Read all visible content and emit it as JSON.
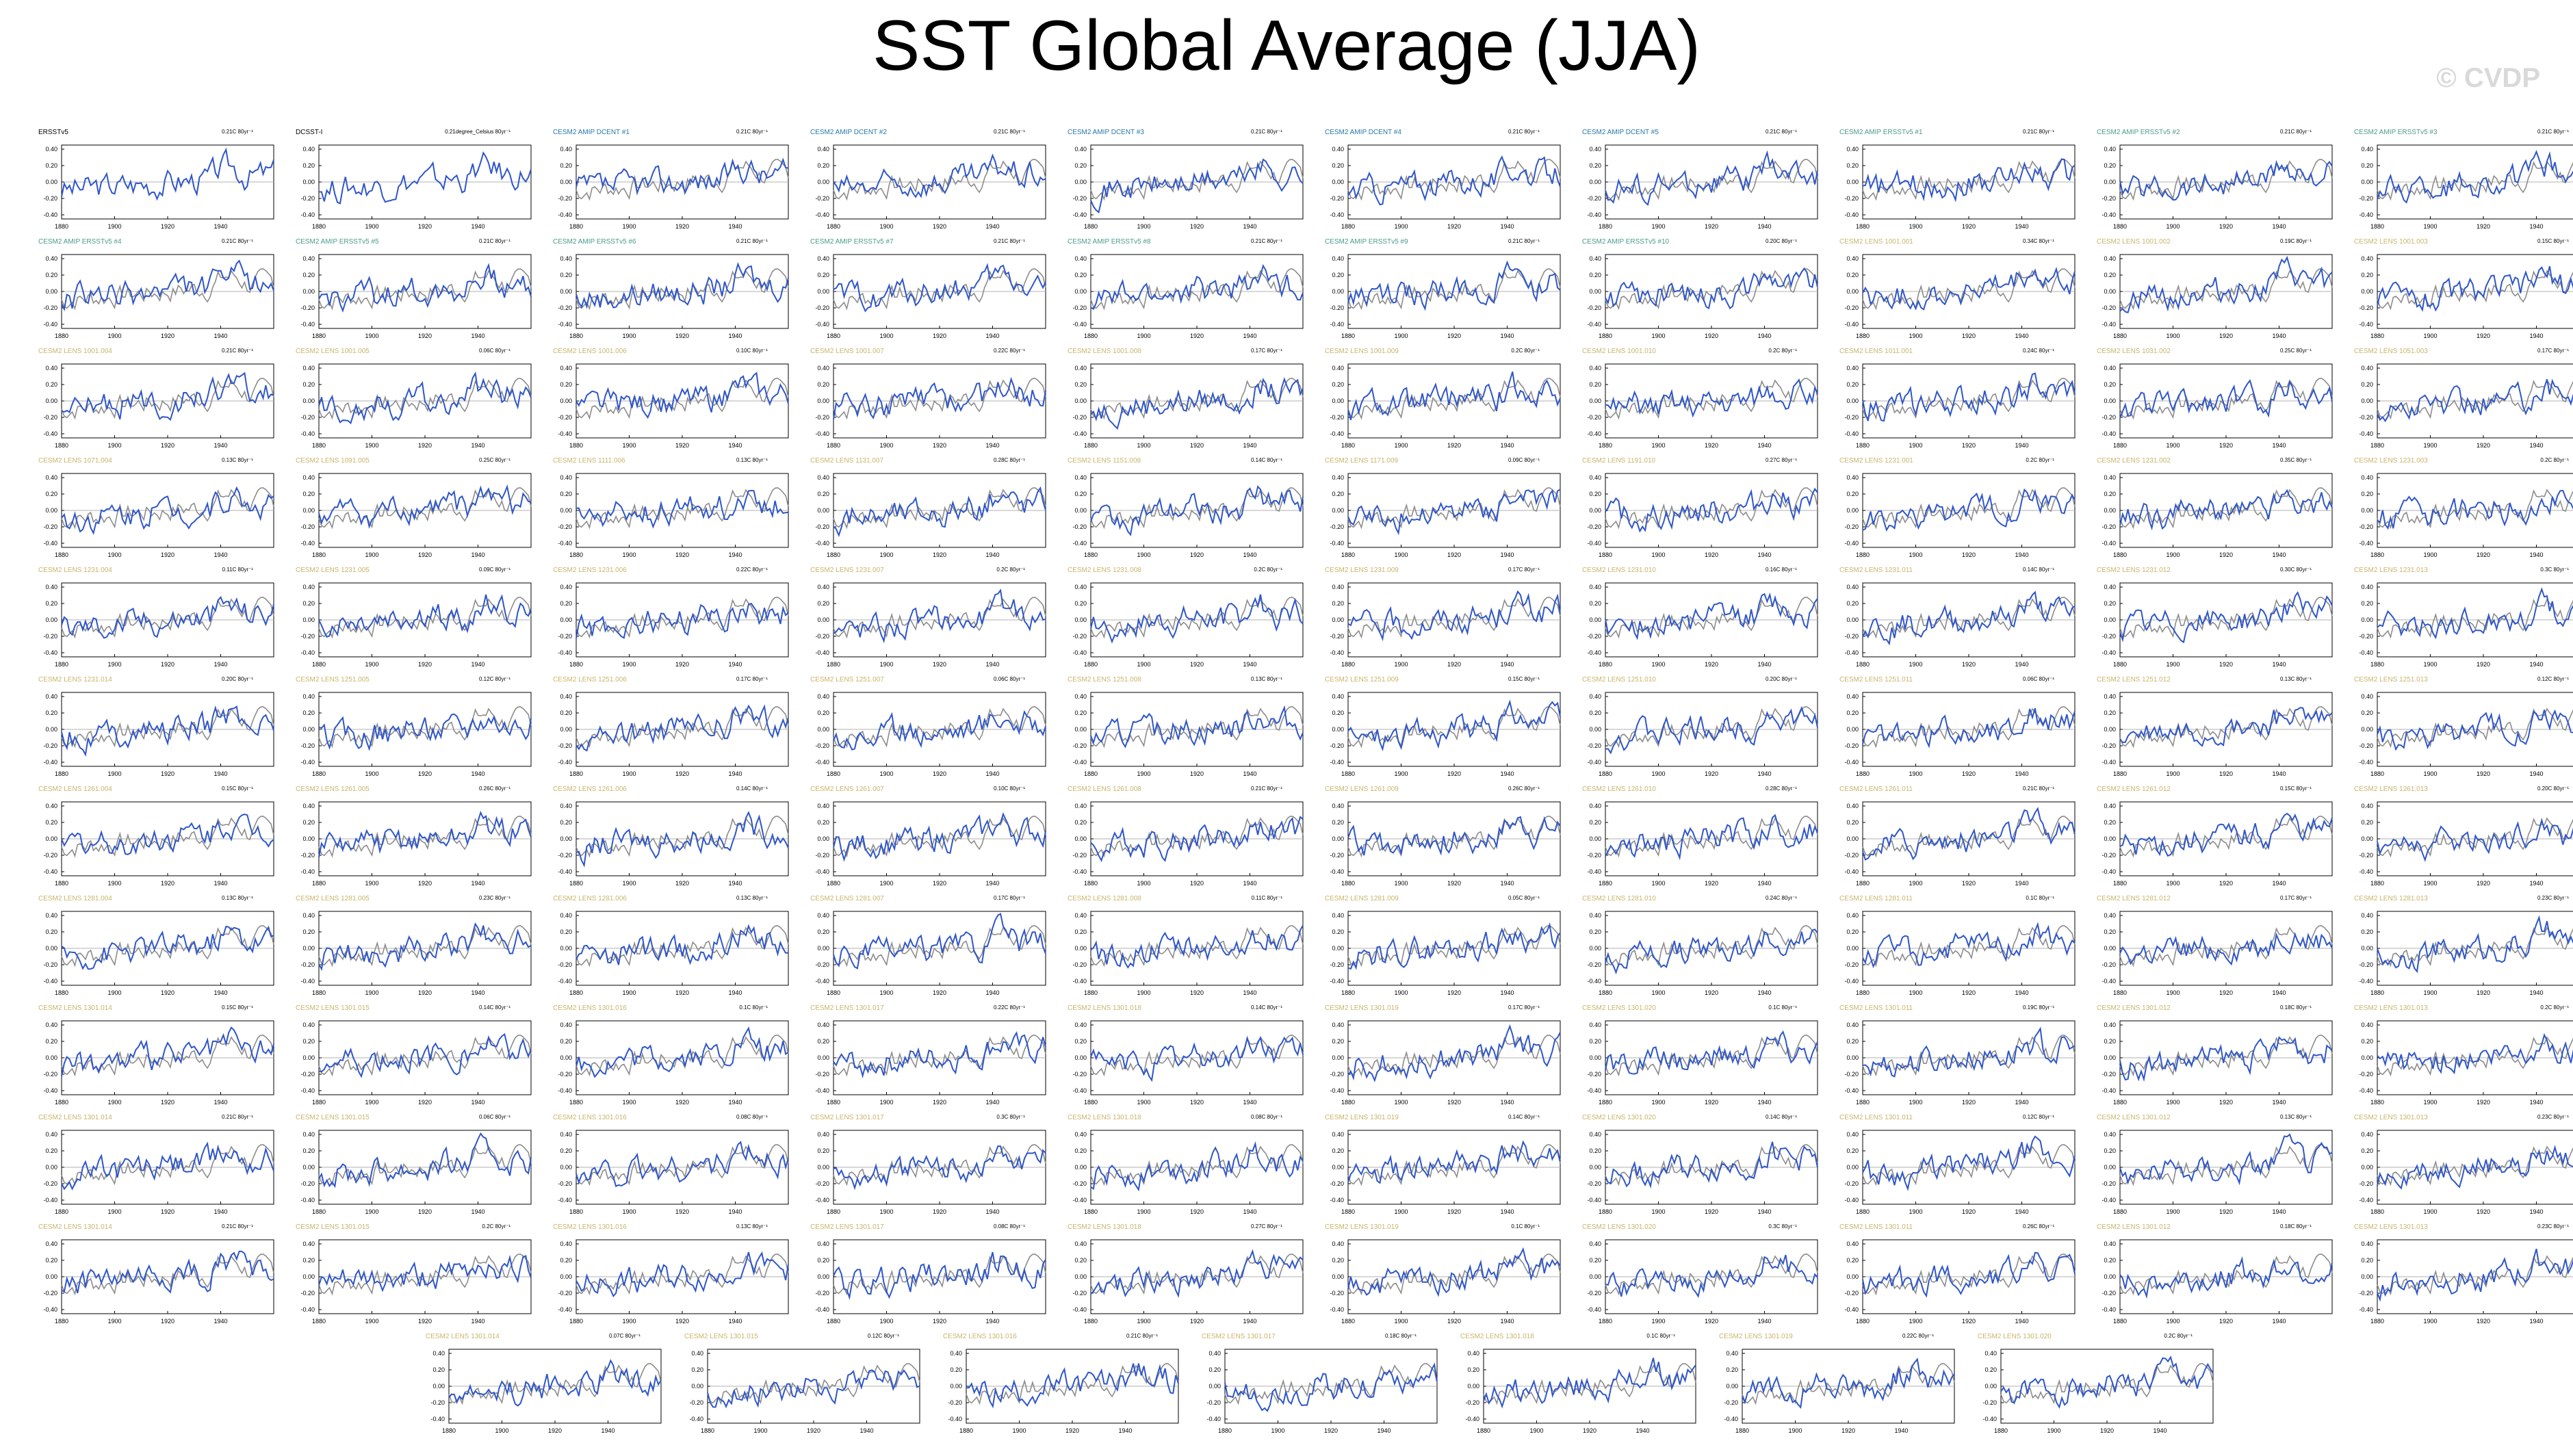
{
  "title": "SST Global Average (JJA)",
  "watermark": "© CVDP",
  "colors": {
    "model": "#2f56c9",
    "obs": "#8c8c8c",
    "zero": "#b0b0b0",
    "t_obs": "#000000",
    "t_dcent": "#2778a8",
    "t_ersst": "#4a9b8a",
    "t_lens": "#c9b46b"
  },
  "chart_data": {
    "type": "line",
    "title": "SST Global Average (JJA)",
    "xlim": [
      1880,
      1960
    ],
    "x_ticks": [
      1880,
      1900,
      1920,
      1940
    ],
    "y_ticks": [
      "0.40",
      "0.20",
      "0.00",
      "-0.20",
      "-0.40"
    ],
    "panels": [
      {
        "name": "ERSSTv5",
        "trend": "0.21C 80yr⁻¹",
        "kind": "obs"
      },
      {
        "name": "DCSST-I",
        "trend": "0.21degree_Celsius 80yr⁻¹",
        "kind": "obs"
      },
      {
        "name": "CESM2 AMIP DCENT #1",
        "trend": "0.21C 80yr⁻¹",
        "kind": "dcent"
      },
      {
        "name": "CESM2 AMIP DCENT #2",
        "trend": "0.21C 80yr⁻¹",
        "kind": "dcent"
      },
      {
        "name": "CESM2 AMIP DCENT #3",
        "trend": "0.21C 80yr⁻¹",
        "kind": "dcent"
      },
      {
        "name": "CESM2 AMIP DCENT #4",
        "trend": "0.21C 80yr⁻¹",
        "kind": "dcent"
      },
      {
        "name": "CESM2 AMIP DCENT #5",
        "trend": "0.21C 80yr⁻¹",
        "kind": "dcent"
      },
      {
        "name": "CESM2 AMIP ERSSTv5 #1",
        "trend": "0.21C 80yr⁻¹",
        "kind": "ersst"
      },
      {
        "name": "CESM2 AMIP ERSSTv5 #2",
        "trend": "0.21C 80yr⁻¹",
        "kind": "ersst"
      },
      {
        "name": "CESM2 AMIP ERSSTv5 #3",
        "trend": "0.21C 80yr⁻¹",
        "kind": "ersst"
      },
      {
        "name": "CESM2 AMIP ERSSTv5 #4",
        "trend": "0.21C 80yr⁻¹",
        "kind": "ersst"
      },
      {
        "name": "CESM2 AMIP ERSSTv5 #5",
        "trend": "0.21C 80yr⁻¹",
        "kind": "ersst"
      },
      {
        "name": "CESM2 AMIP ERSSTv5 #6",
        "trend": "0.21C 80yr⁻¹",
        "kind": "ersst"
      },
      {
        "name": "CESM2 AMIP ERSSTv5 #7",
        "trend": "0.21C 80yr⁻¹",
        "kind": "ersst"
      },
      {
        "name": "CESM2 AMIP ERSSTv5 #8",
        "trend": "0.21C 80yr⁻¹",
        "kind": "ersst"
      },
      {
        "name": "CESM2 AMIP ERSSTv5 #9",
        "trend": "0.21C 80yr⁻¹",
        "kind": "ersst"
      },
      {
        "name": "CESM2 AMIP ERSSTv5 #10",
        "trend": "0.20C 80yr⁻¹",
        "kind": "ersst"
      },
      {
        "name": "CESM2 LENS 1001.001",
        "trend": "0.34C 80yr⁻¹",
        "kind": "lens"
      },
      {
        "name": "CESM2 LENS 1001.002",
        "trend": "0.19C 80yr⁻¹",
        "kind": "lens"
      },
      {
        "name": "CESM2 LENS 1001.003",
        "trend": "0.15C 80yr⁻¹",
        "kind": "lens"
      },
      {
        "name": "CESM2 LENS 1001.004",
        "trend": "0.21C 80yr⁻¹",
        "kind": "lens"
      },
      {
        "name": "CESM2 LENS 1001.005",
        "trend": "0.06C 80yr⁻¹",
        "kind": "lens"
      },
      {
        "name": "CESM2 LENS 1001.006",
        "trend": "0.10C 80yr⁻¹",
        "kind": "lens"
      },
      {
        "name": "CESM2 LENS 1001.007",
        "trend": "0.22C 80yr⁻¹",
        "kind": "lens"
      },
      {
        "name": "CESM2 LENS 1001.008",
        "trend": "0.17C 80yr⁻¹",
        "kind": "lens"
      },
      {
        "name": "CESM2 LENS 1001.009",
        "trend": "0.2C 80yr⁻¹",
        "kind": "lens"
      },
      {
        "name": "CESM2 LENS 1001.010",
        "trend": "0.2C 80yr⁻¹",
        "kind": "lens"
      },
      {
        "name": "CESM2 LENS 1011.001",
        "trend": "0.24C 80yr⁻¹",
        "kind": "lens"
      },
      {
        "name": "CESM2 LENS 1031.002",
        "trend": "0.25C 80yr⁻¹",
        "kind": "lens"
      },
      {
        "name": "CESM2 LENS 1051.003",
        "trend": "0.17C 80yr⁻¹",
        "kind": "lens"
      },
      {
        "name": "CESM2 LENS 1071.004",
        "trend": "0.13C 80yr⁻¹",
        "kind": "lens"
      },
      {
        "name": "CESM2 LENS 1091.005",
        "trend": "0.25C 80yr⁻¹",
        "kind": "lens"
      },
      {
        "name": "CESM2 LENS 1111.006",
        "trend": "0.13C 80yr⁻¹",
        "kind": "lens"
      },
      {
        "name": "CESM2 LENS 1131.007",
        "trend": "0.28C 80yr⁻¹",
        "kind": "lens"
      },
      {
        "name": "CESM2 LENS 1151.008",
        "trend": "0.14C 80yr⁻¹",
        "kind": "lens"
      },
      {
        "name": "CESM2 LENS 1171.009",
        "trend": "0.09C 80yr⁻¹",
        "kind": "lens"
      },
      {
        "name": "CESM2 LENS 1191.010",
        "trend": "0.27C 80yr⁻¹",
        "kind": "lens"
      },
      {
        "name": "CESM2 LENS 1231.001",
        "trend": "0.2C 80yr⁻¹",
        "kind": "lens"
      },
      {
        "name": "CESM2 LENS 1231.002",
        "trend": "0.35C 80yr⁻¹",
        "kind": "lens"
      },
      {
        "name": "CESM2 LENS 1231.003",
        "trend": "0.2C 80yr⁻¹",
        "kind": "lens"
      },
      {
        "name": "CESM2 LENS 1231.004",
        "trend": "0.11C 80yr⁻¹",
        "kind": "lens"
      },
      {
        "name": "CESM2 LENS 1231.005",
        "trend": "0.09C 80yr⁻¹",
        "kind": "lens"
      },
      {
        "name": "CESM2 LENS 1231.006",
        "trend": "0.22C 80yr⁻¹",
        "kind": "lens"
      },
      {
        "name": "CESM2 LENS 1231.007",
        "trend": "0.2C 80yr⁻¹",
        "kind": "lens"
      },
      {
        "name": "CESM2 LENS 1231.008",
        "trend": "0.2C 80yr⁻¹",
        "kind": "lens"
      },
      {
        "name": "CESM2 LENS 1231.009",
        "trend": "0.17C 80yr⁻¹",
        "kind": "lens"
      },
      {
        "name": "CESM2 LENS 1231.010",
        "trend": "0.16C 80yr⁻¹",
        "kind": "lens"
      },
      {
        "name": "CESM2 LENS 1231.011",
        "trend": "0.14C 80yr⁻¹",
        "kind": "lens"
      },
      {
        "name": "CESM2 LENS 1231.012",
        "trend": "0.30C 80yr⁻¹",
        "kind": "lens"
      },
      {
        "name": "CESM2 LENS 1231.013",
        "trend": "0.3C 80yr⁻¹",
        "kind": "lens"
      },
      {
        "name": "CESM2 LENS 1231.014",
        "trend": "0.20C 80yr⁻¹",
        "kind": "lens"
      },
      {
        "name": "CESM2 LENS 1251.005",
        "trend": "0.12C 80yr⁻¹",
        "kind": "lens"
      },
      {
        "name": "CESM2 LENS 1251.006",
        "trend": "0.17C 80yr⁻¹",
        "kind": "lens"
      },
      {
        "name": "CESM2 LENS 1251.007",
        "trend": "0.06C 80yr⁻¹",
        "kind": "lens"
      },
      {
        "name": "CESM2 LENS 1251.008",
        "trend": "0.13C 80yr⁻¹",
        "kind": "lens"
      },
      {
        "name": "CESM2 LENS 1251.009",
        "trend": "0.15C 80yr⁻¹",
        "kind": "lens"
      },
      {
        "name": "CESM2 LENS 1251.010",
        "trend": "0.20C 80yr⁻¹",
        "kind": "lens"
      },
      {
        "name": "CESM2 LENS 1251.011",
        "trend": "0.06C 80yr⁻¹",
        "kind": "lens"
      },
      {
        "name": "CESM2 LENS 1251.012",
        "trend": "0.13C 80yr⁻¹",
        "kind": "lens"
      },
      {
        "name": "CESM2 LENS 1251.013",
        "trend": "0.12C 80yr⁻¹",
        "kind": "lens"
      },
      {
        "name": "CESM2 LENS 1261.004",
        "trend": "0.15C 80yr⁻¹",
        "kind": "lens"
      },
      {
        "name": "CESM2 LENS 1261.005",
        "trend": "0.26C 80yr⁻¹",
        "kind": "lens"
      },
      {
        "name": "CESM2 LENS 1261.006",
        "trend": "0.14C 80yr⁻¹",
        "kind": "lens"
      },
      {
        "name": "CESM2 LENS 1261.007",
        "trend": "0.10C 80yr⁻¹",
        "kind": "lens"
      },
      {
        "name": "CESM2 LENS 1261.008",
        "trend": "0.21C 80yr⁻¹",
        "kind": "lens"
      },
      {
        "name": "CESM2 LENS 1261.009",
        "trend": "0.26C 80yr⁻¹",
        "kind": "lens"
      },
      {
        "name": "CESM2 LENS 1261.010",
        "trend": "0.28C 80yr⁻¹",
        "kind": "lens"
      },
      {
        "name": "CESM2 LENS 1261.011",
        "trend": "0.21C 80yr⁻¹",
        "kind": "lens"
      },
      {
        "name": "CESM2 LENS 1261.012",
        "trend": "0.15C 80yr⁻¹",
        "kind": "lens"
      },
      {
        "name": "CESM2 LENS 1261.013",
        "trend": "0.20C 80yr⁻¹",
        "kind": "lens"
      },
      {
        "name": "CESM2 LENS 1281.004",
        "trend": "0.13C 80yr⁻¹",
        "kind": "lens"
      },
      {
        "name": "CESM2 LENS 1281.005",
        "trend": "0.23C 80yr⁻¹",
        "kind": "lens"
      },
      {
        "name": "CESM2 LENS 1281.006",
        "trend": "0.13C 80yr⁻¹",
        "kind": "lens"
      },
      {
        "name": "CESM2 LENS 1281.007",
        "trend": "0.17C 80yr⁻¹",
        "kind": "lens"
      },
      {
        "name": "CESM2 LENS 1281.008",
        "trend": "0.11C 80yr⁻¹",
        "kind": "lens"
      },
      {
        "name": "CESM2 LENS 1281.009",
        "trend": "0.05C 80yr⁻¹",
        "kind": "lens"
      },
      {
        "name": "CESM2 LENS 1281.010",
        "trend": "0.24C 80yr⁻¹",
        "kind": "lens"
      },
      {
        "name": "CESM2 LENS 1281.011",
        "trend": "0.1C 80yr⁻¹",
        "kind": "lens"
      },
      {
        "name": "CESM2 LENS 1281.012",
        "trend": "0.17C 80yr⁻¹",
        "kind": "lens"
      },
      {
        "name": "CESM2 LENS 1281.013",
        "trend": "0.23C 80yr⁻¹",
        "kind": "lens"
      },
      {
        "name": "CESM2 LENS 1301.014",
        "trend": "0.15C 80yr⁻¹",
        "kind": "lens"
      },
      {
        "name": "CESM2 LENS 1301.015",
        "trend": "0.14C 80yr⁻¹",
        "kind": "lens"
      },
      {
        "name": "CESM2 LENS 1301.016",
        "trend": "0.1C 80yr⁻¹",
        "kind": "lens"
      },
      {
        "name": "CESM2 LENS 1301.017",
        "trend": "0.22C 80yr⁻¹",
        "kind": "lens"
      },
      {
        "name": "CESM2 LENS 1301.018",
        "trend": "0.14C 80yr⁻¹",
        "kind": "lens"
      },
      {
        "name": "CESM2 LENS 1301.019",
        "trend": "0.17C 80yr⁻¹",
        "kind": "lens"
      },
      {
        "name": "CESM2 LENS 1301.020",
        "trend": "0.1C 80yr⁻¹",
        "kind": "lens"
      },
      {
        "name": "CESM2 LENS 1301.011",
        "trend": "0.19C 80yr⁻¹",
        "kind": "lens"
      },
      {
        "name": "CESM2 LENS 1301.012",
        "trend": "0.18C 80yr⁻¹",
        "kind": "lens"
      },
      {
        "name": "CESM2 LENS 1301.013",
        "trend": "0.2C 80yr⁻¹",
        "kind": "lens"
      },
      {
        "name": "CESM2 LENS 1301.014",
        "trend": "0.21C 80yr⁻¹",
        "kind": "lens"
      },
      {
        "name": "CESM2 LENS 1301.015",
        "trend": "0.06C 80yr⁻¹",
        "kind": "lens"
      },
      {
        "name": "CESM2 LENS 1301.016",
        "trend": "0.08C 80yr⁻¹",
        "kind": "lens"
      },
      {
        "name": "CESM2 LENS 1301.017",
        "trend": "0.3C 80yr⁻¹",
        "kind": "lens"
      },
      {
        "name": "CESM2 LENS 1301.018",
        "trend": "0.08C 80yr⁻¹",
        "kind": "lens"
      },
      {
        "name": "CESM2 LENS 1301.019",
        "trend": "0.14C 80yr⁻¹",
        "kind": "lens"
      },
      {
        "name": "CESM2 LENS 1301.020",
        "trend": "0.14C 80yr⁻¹",
        "kind": "lens"
      },
      {
        "name": "CESM2 LENS 1301.011",
        "trend": "0.12C 80yr⁻¹",
        "kind": "lens"
      },
      {
        "name": "CESM2 LENS 1301.012",
        "trend": "0.13C 80yr⁻¹",
        "kind": "lens"
      },
      {
        "name": "CESM2 LENS 1301.013",
        "trend": "0.23C 80yr⁻¹",
        "kind": "lens"
      },
      {
        "name": "CESM2 LENS 1301.014",
        "trend": "0.21C 80yr⁻¹",
        "kind": "lens"
      },
      {
        "name": "CESM2 LENS 1301.015",
        "trend": "0.2C 80yr⁻¹",
        "kind": "lens"
      },
      {
        "name": "CESM2 LENS 1301.016",
        "trend": "0.13C 80yr⁻¹",
        "kind": "lens"
      },
      {
        "name": "CESM2 LENS 1301.017",
        "trend": "0.08C 80yr⁻¹",
        "kind": "lens"
      },
      {
        "name": "CESM2 LENS 1301.018",
        "trend": "0.27C 80yr⁻¹",
        "kind": "lens"
      },
      {
        "name": "CESM2 LENS 1301.019",
        "trend": "0.1C 80yr⁻¹",
        "kind": "lens"
      },
      {
        "name": "CESM2 LENS 1301.020",
        "trend": "0.3C 80yr⁻¹",
        "kind": "lens"
      },
      {
        "name": "CESM2 LENS 1301.011",
        "trend": "0.26C 80yr⁻¹",
        "kind": "lens"
      },
      {
        "name": "CESM2 LENS 1301.012",
        "trend": "0.18C 80yr⁻¹",
        "kind": "lens"
      },
      {
        "name": "CESM2 LENS 1301.013",
        "trend": "0.23C 80yr⁻¹",
        "kind": "lens"
      },
      {
        "name": "CESM2 LENS 1301.014",
        "trend": "0.07C 80yr⁻¹",
        "kind": "lens"
      },
      {
        "name": "CESM2 LENS 1301.015",
        "trend": "0.12C 80yr⁻¹",
        "kind": "lens"
      },
      {
        "name": "CESM2 LENS 1301.016",
        "trend": "0.21C 80yr⁻¹",
        "kind": "lens"
      },
      {
        "name": "CESM2 LENS 1301.017",
        "trend": "0.18C 80yr⁻¹",
        "kind": "lens"
      },
      {
        "name": "CESM2 LENS 1301.018",
        "trend": "0.1C 80yr⁻¹",
        "kind": "lens"
      },
      {
        "name": "CESM2 LENS 1301.019",
        "trend": "0.22C 80yr⁻¹",
        "kind": "lens"
      },
      {
        "name": "CESM2 LENS 1301.020",
        "trend": "0.2C 80yr⁻¹",
        "kind": "lens"
      }
    ]
  }
}
